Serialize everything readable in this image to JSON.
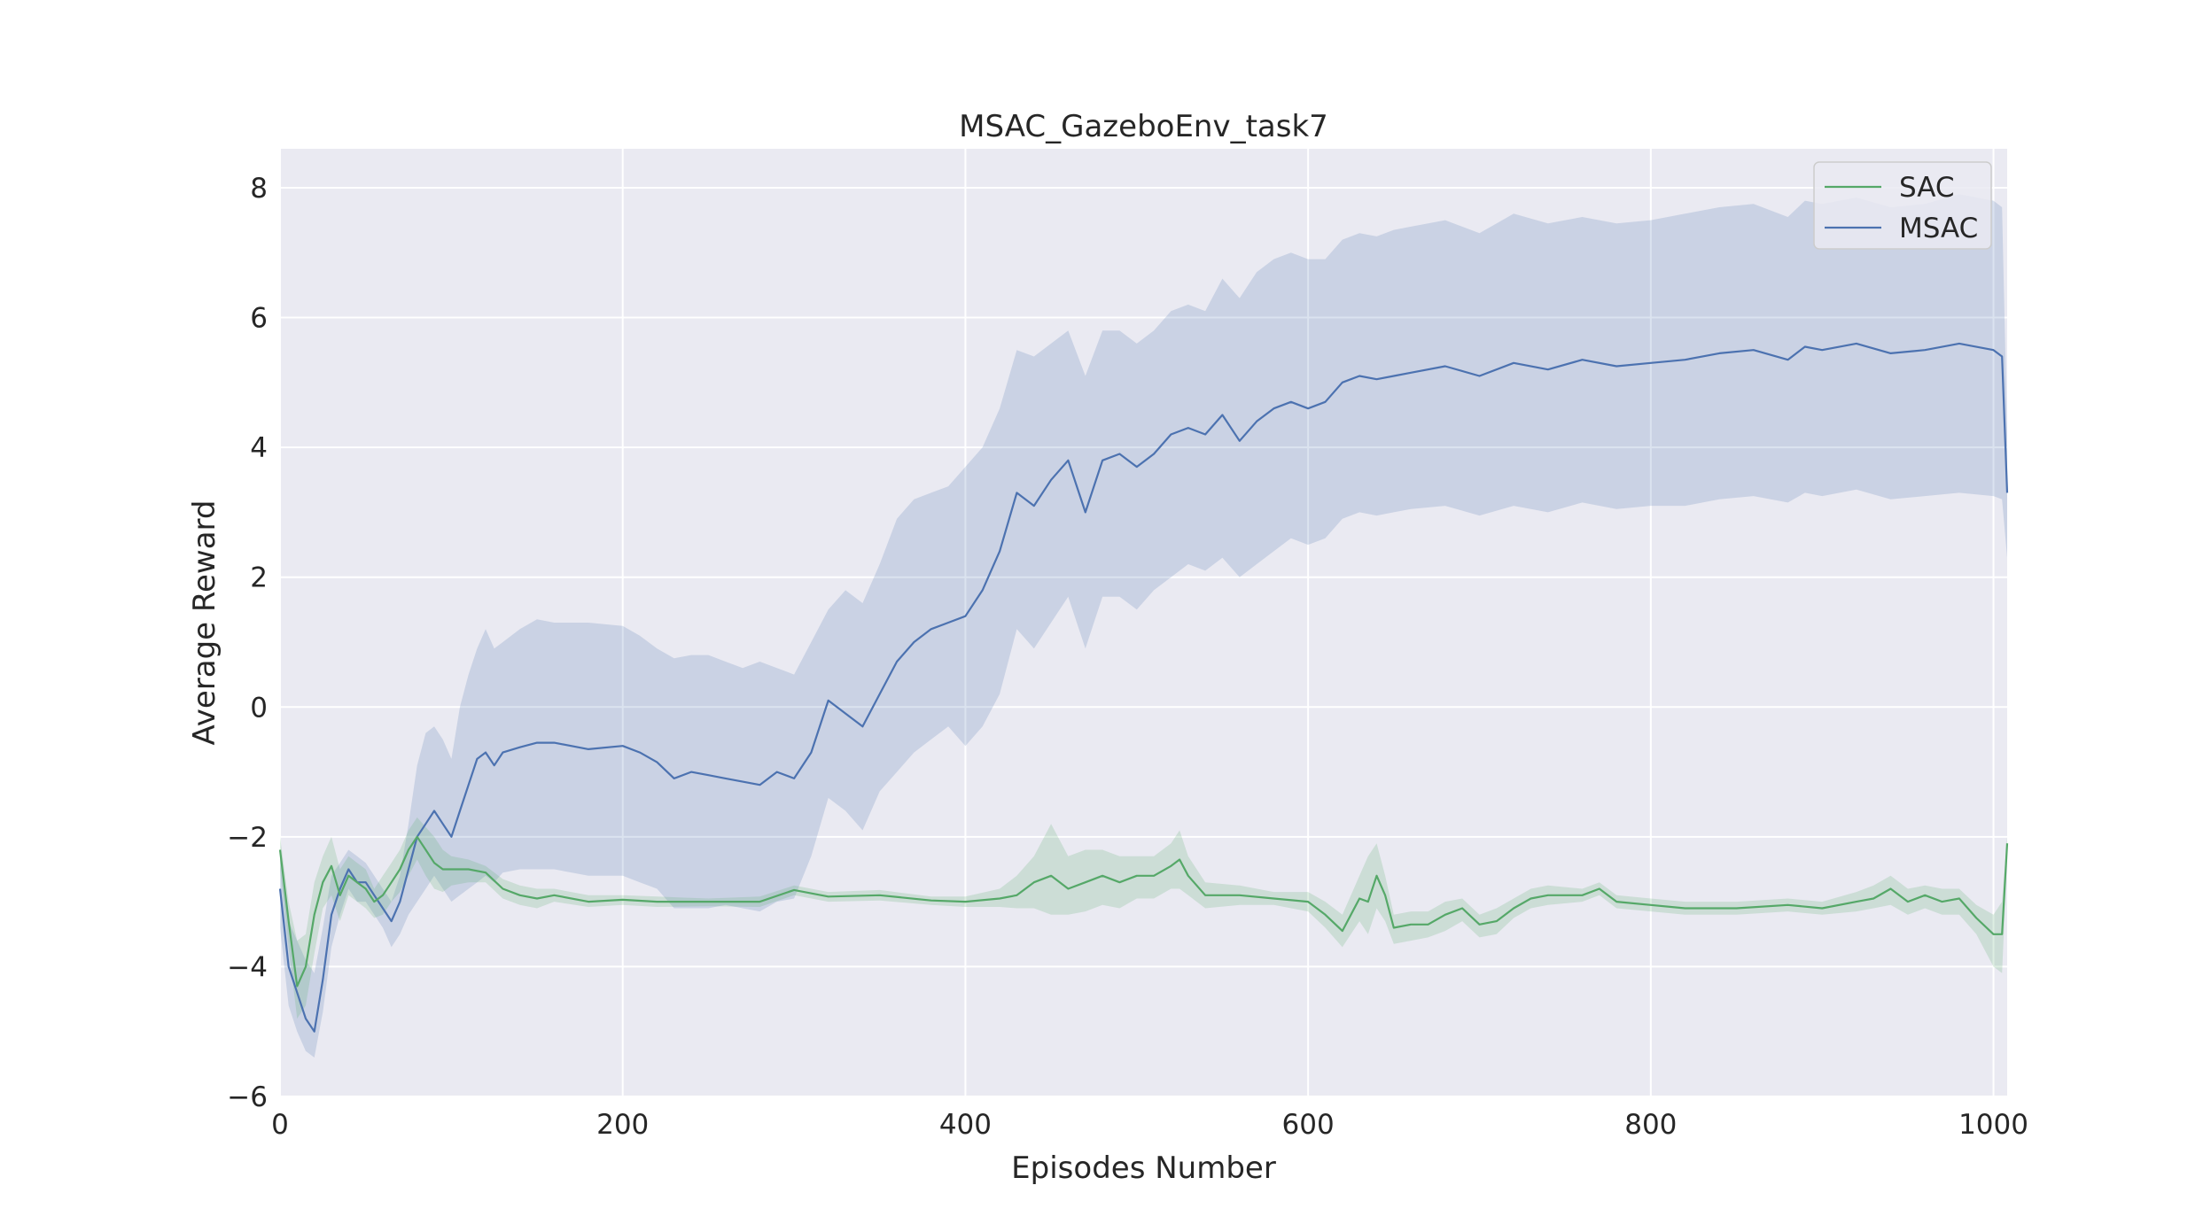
{
  "chart_data": {
    "type": "line",
    "title": "MSAC_GazeboEnv_task7",
    "xlabel": "Episodes Number",
    "ylabel": "Average Reward",
    "xlim": [
      0,
      1008
    ],
    "ylim": [
      -6,
      8.6
    ],
    "xticks": [
      0,
      200,
      400,
      600,
      800,
      1000
    ],
    "xtick_labels": [
      "0",
      "200",
      "400",
      "600",
      "800",
      "1000"
    ],
    "yticks": [
      -6,
      -4,
      -2,
      0,
      2,
      4,
      6,
      8
    ],
    "ytick_labels": [
      "−6",
      "−4",
      "−2",
      "0",
      "2",
      "4",
      "6",
      "8"
    ],
    "grid": true,
    "legend_position": "top-right",
    "legend": [
      "SAC",
      "MSAC"
    ],
    "colors": {
      "background": "#eaeaf2",
      "grid": "#ffffff",
      "SAC": "#55a868",
      "MSAC": "#4c72b0"
    },
    "series": [
      {
        "name": "SAC",
        "x": [
          0,
          5,
          10,
          15,
          20,
          25,
          30,
          35,
          40,
          45,
          50,
          55,
          60,
          65,
          70,
          75,
          80,
          85,
          90,
          95,
          100,
          110,
          120,
          130,
          140,
          150,
          160,
          180,
          200,
          220,
          250,
          280,
          300,
          320,
          350,
          380,
          400,
          420,
          430,
          440,
          450,
          460,
          470,
          480,
          490,
          500,
          510,
          520,
          525,
          530,
          540,
          560,
          580,
          600,
          610,
          620,
          630,
          635,
          640,
          645,
          650,
          660,
          670,
          680,
          690,
          700,
          710,
          720,
          730,
          740,
          760,
          770,
          780,
          800,
          820,
          850,
          880,
          900,
          920,
          930,
          940,
          950,
          960,
          970,
          980,
          990,
          1000,
          1005,
          1008
        ],
        "mean": [
          -2.2,
          -3.3,
          -4.3,
          -4.0,
          -3.2,
          -2.7,
          -2.45,
          -2.9,
          -2.6,
          -2.7,
          -2.8,
          -3.0,
          -2.9,
          -2.7,
          -2.5,
          -2.2,
          -2.0,
          -2.2,
          -2.4,
          -2.5,
          -2.5,
          -2.5,
          -2.55,
          -2.8,
          -2.9,
          -2.95,
          -2.9,
          -3.0,
          -2.97,
          -3.0,
          -3.0,
          -3.0,
          -2.82,
          -2.92,
          -2.9,
          -2.98,
          -3.0,
          -2.95,
          -2.9,
          -2.7,
          -2.6,
          -2.8,
          -2.7,
          -2.6,
          -2.7,
          -2.6,
          -2.6,
          -2.45,
          -2.35,
          -2.6,
          -2.9,
          -2.9,
          -2.95,
          -3.0,
          -3.2,
          -3.45,
          -2.95,
          -3.0,
          -2.6,
          -2.9,
          -3.4,
          -3.35,
          -3.35,
          -3.2,
          -3.1,
          -3.35,
          -3.3,
          -3.1,
          -2.95,
          -2.9,
          -2.9,
          -2.8,
          -3.0,
          -3.05,
          -3.1,
          -3.1,
          -3.05,
          -3.1,
          -3.0,
          -2.95,
          -2.8,
          -3.0,
          -2.9,
          -3.0,
          -2.95,
          -3.25,
          -3.5,
          -3.5,
          -2.1
        ],
        "upper": [
          -2.0,
          -3.0,
          -3.6,
          -3.5,
          -2.7,
          -2.3,
          -2.0,
          -2.5,
          -2.3,
          -2.4,
          -2.5,
          -2.8,
          -2.6,
          -2.4,
          -2.2,
          -1.9,
          -1.7,
          -1.85,
          -2.0,
          -2.2,
          -2.3,
          -2.35,
          -2.45,
          -2.65,
          -2.75,
          -2.8,
          -2.8,
          -2.9,
          -2.9,
          -2.92,
          -2.95,
          -2.92,
          -2.75,
          -2.85,
          -2.82,
          -2.92,
          -2.92,
          -2.8,
          -2.6,
          -2.3,
          -1.8,
          -2.3,
          -2.2,
          -2.2,
          -2.3,
          -2.3,
          -2.3,
          -2.1,
          -1.9,
          -2.3,
          -2.7,
          -2.75,
          -2.85,
          -2.85,
          -3.0,
          -3.2,
          -2.6,
          -2.3,
          -2.1,
          -2.6,
          -3.2,
          -3.15,
          -3.15,
          -3.0,
          -2.95,
          -3.2,
          -3.1,
          -2.95,
          -2.8,
          -2.75,
          -2.8,
          -2.7,
          -2.9,
          -2.95,
          -3.0,
          -3.0,
          -2.95,
          -3.0,
          -2.85,
          -2.75,
          -2.6,
          -2.8,
          -2.75,
          -2.8,
          -2.8,
          -3.05,
          -3.2,
          -3.0,
          -2.0
        ],
        "lower": [
          -2.5,
          -3.7,
          -4.8,
          -4.6,
          -3.8,
          -3.1,
          -2.9,
          -3.3,
          -2.9,
          -3.0,
          -3.1,
          -3.25,
          -3.2,
          -3.0,
          -2.85,
          -2.6,
          -2.35,
          -2.6,
          -2.8,
          -2.85,
          -2.75,
          -2.7,
          -2.7,
          -2.95,
          -3.05,
          -3.1,
          -3.0,
          -3.08,
          -3.05,
          -3.08,
          -3.07,
          -3.08,
          -2.9,
          -3.0,
          -2.98,
          -3.05,
          -3.08,
          -3.08,
          -3.1,
          -3.1,
          -3.2,
          -3.2,
          -3.15,
          -3.05,
          -3.1,
          -2.95,
          -2.95,
          -2.8,
          -2.8,
          -2.9,
          -3.1,
          -3.05,
          -3.05,
          -3.15,
          -3.4,
          -3.7,
          -3.3,
          -3.5,
          -3.1,
          -3.3,
          -3.65,
          -3.6,
          -3.55,
          -3.45,
          -3.3,
          -3.55,
          -3.5,
          -3.25,
          -3.1,
          -3.05,
          -3.0,
          -2.9,
          -3.1,
          -3.15,
          -3.2,
          -3.2,
          -3.15,
          -3.2,
          -3.15,
          -3.1,
          -3.05,
          -3.2,
          -3.1,
          -3.2,
          -3.2,
          -3.5,
          -4.0,
          -4.1,
          -2.3
        ]
      },
      {
        "name": "MSAC",
        "x": [
          0,
          5,
          10,
          15,
          20,
          25,
          30,
          35,
          40,
          45,
          50,
          55,
          60,
          65,
          70,
          75,
          80,
          85,
          90,
          95,
          100,
          105,
          110,
          115,
          120,
          125,
          130,
          140,
          150,
          160,
          180,
          200,
          210,
          220,
          230,
          240,
          250,
          260,
          270,
          280,
          290,
          300,
          310,
          320,
          330,
          340,
          350,
          360,
          370,
          380,
          390,
          400,
          410,
          420,
          430,
          440,
          450,
          460,
          470,
          480,
          490,
          500,
          510,
          520,
          530,
          540,
          550,
          560,
          570,
          580,
          590,
          600,
          610,
          620,
          630,
          640,
          650,
          660,
          680,
          700,
          720,
          740,
          760,
          780,
          800,
          820,
          840,
          860,
          880,
          890,
          900,
          920,
          940,
          960,
          980,
          1000,
          1005,
          1008
        ],
        "mean": [
          -2.8,
          -4.0,
          -4.4,
          -4.8,
          -5.0,
          -4.2,
          -3.2,
          -2.8,
          -2.5,
          -2.7,
          -2.7,
          -2.9,
          -3.1,
          -3.3,
          -3.0,
          -2.5,
          -2.0,
          -1.8,
          -1.6,
          -1.8,
          -2.0,
          -1.6,
          -1.2,
          -0.8,
          -0.7,
          -0.9,
          -0.7,
          -0.62,
          -0.55,
          -0.55,
          -0.65,
          -0.6,
          -0.7,
          -0.85,
          -1.1,
          -1.0,
          -1.05,
          -1.1,
          -1.15,
          -1.2,
          -1.0,
          -1.1,
          -0.7,
          0.1,
          -0.1,
          -0.3,
          0.2,
          0.7,
          1.0,
          1.2,
          1.3,
          1.4,
          1.8,
          2.4,
          3.3,
          3.1,
          3.5,
          3.8,
          3.0,
          3.8,
          3.9,
          3.7,
          3.9,
          4.2,
          4.3,
          4.2,
          4.5,
          4.1,
          4.4,
          4.6,
          4.7,
          4.6,
          4.7,
          5.0,
          5.1,
          5.05,
          5.1,
          5.15,
          5.25,
          5.1,
          5.3,
          5.2,
          5.35,
          5.25,
          5.3,
          5.35,
          5.45,
          5.5,
          5.35,
          5.55,
          5.5,
          5.6,
          5.45,
          5.5,
          5.6,
          5.5,
          5.4,
          3.3
        ],
        "upper": [
          -2.2,
          -3.3,
          -3.6,
          -3.9,
          -4.1,
          -3.4,
          -2.6,
          -2.4,
          -2.2,
          -2.3,
          -2.4,
          -2.6,
          -2.8,
          -3.0,
          -2.6,
          -1.8,
          -0.9,
          -0.4,
          -0.3,
          -0.5,
          -0.8,
          0.0,
          0.5,
          0.9,
          1.2,
          0.9,
          1.0,
          1.2,
          1.35,
          1.3,
          1.3,
          1.25,
          1.1,
          0.9,
          0.75,
          0.8,
          0.8,
          0.7,
          0.6,
          0.7,
          0.6,
          0.5,
          1.0,
          1.5,
          1.8,
          1.6,
          2.2,
          2.9,
          3.2,
          3.3,
          3.4,
          3.7,
          4.0,
          4.6,
          5.5,
          5.4,
          5.6,
          5.8,
          5.1,
          5.8,
          5.8,
          5.6,
          5.8,
          6.1,
          6.2,
          6.1,
          6.6,
          6.3,
          6.7,
          6.9,
          7.0,
          6.9,
          6.9,
          7.2,
          7.3,
          7.25,
          7.35,
          7.4,
          7.5,
          7.3,
          7.6,
          7.45,
          7.55,
          7.45,
          7.5,
          7.6,
          7.7,
          7.75,
          7.55,
          7.8,
          7.75,
          7.85,
          7.7,
          7.75,
          7.9,
          7.8,
          7.7,
          4.2
        ],
        "lower": [
          -3.4,
          -4.6,
          -5.0,
          -5.3,
          -5.4,
          -4.7,
          -3.7,
          -3.2,
          -2.8,
          -3.0,
          -3.0,
          -3.2,
          -3.4,
          -3.7,
          -3.5,
          -3.2,
          -3.0,
          -2.8,
          -2.6,
          -2.8,
          -3.0,
          -2.9,
          -2.8,
          -2.7,
          -2.6,
          -2.7,
          -2.55,
          -2.5,
          -2.5,
          -2.5,
          -2.6,
          -2.6,
          -2.7,
          -2.8,
          -3.1,
          -3.1,
          -3.1,
          -3.05,
          -3.1,
          -3.15,
          -3.0,
          -2.95,
          -2.3,
          -1.4,
          -1.6,
          -1.9,
          -1.3,
          -1.0,
          -0.7,
          -0.5,
          -0.3,
          -0.6,
          -0.3,
          0.2,
          1.2,
          0.9,
          1.3,
          1.7,
          0.9,
          1.7,
          1.7,
          1.5,
          1.8,
          2.0,
          2.2,
          2.1,
          2.3,
          2.0,
          2.2,
          2.4,
          2.6,
          2.5,
          2.6,
          2.9,
          3.0,
          2.95,
          3.0,
          3.05,
          3.1,
          2.95,
          3.1,
          3.0,
          3.15,
          3.05,
          3.1,
          3.1,
          3.2,
          3.25,
          3.15,
          3.3,
          3.25,
          3.35,
          3.2,
          3.25,
          3.3,
          3.25,
          3.2,
          2.3
        ]
      }
    ]
  }
}
